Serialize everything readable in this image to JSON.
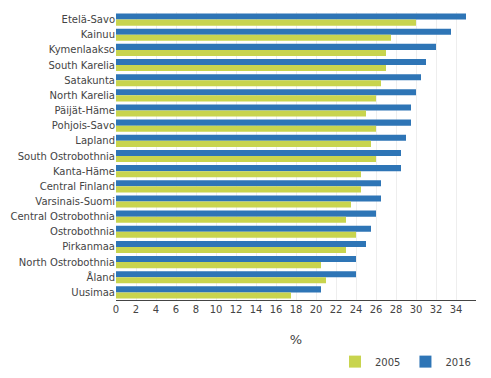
{
  "chart_data": {
    "type": "bar",
    "orientation": "horizontal",
    "categories": [
      "Etelä-Savo",
      "Kainuu",
      "Kymenlaakso",
      "South Karelia",
      "Satakunta",
      "North Karelia",
      "Päijät-Häme",
      "Pohjois-Savo",
      "Lapland",
      "South Ostrobothnia",
      "Kanta-Häme",
      "Central Finland",
      "Varsinais-Suomi",
      "Central Ostrobothnia",
      "Ostrobothnia",
      "Pirkanmaa",
      "North Ostrobothnia",
      "Åland",
      "Uusimaa"
    ],
    "series": [
      {
        "name": "2005",
        "color": "#c8d44e",
        "values": [
          30.0,
          27.5,
          27.0,
          27.0,
          26.5,
          26.0,
          25.0,
          26.0,
          25.5,
          26.0,
          24.5,
          24.5,
          23.5,
          23.0,
          24.0,
          23.0,
          20.5,
          21.0,
          17.5
        ]
      },
      {
        "name": "2016",
        "color": "#2e75b6",
        "values": [
          35.0,
          33.5,
          32.0,
          31.0,
          30.5,
          30.0,
          29.5,
          29.5,
          29.0,
          28.5,
          28.5,
          26.5,
          26.5,
          26.0,
          25.5,
          25.0,
          24.0,
          24.0,
          20.5
        ]
      }
    ],
    "xlabel": "%",
    "xlim": [
      0,
      36
    ],
    "xticks": [
      0,
      2,
      4,
      6,
      8,
      10,
      12,
      14,
      16,
      18,
      20,
      22,
      24,
      26,
      28,
      30,
      32,
      34
    ],
    "grid": true,
    "legend": "lower right"
  }
}
